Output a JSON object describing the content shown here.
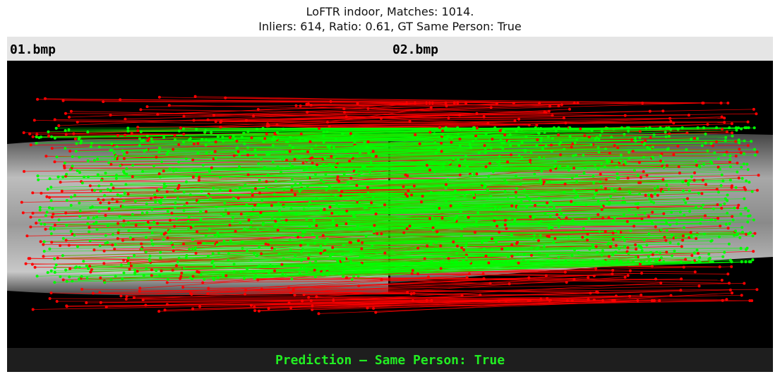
{
  "title": {
    "line1": "LoFTR indoor, Matches: 1014.",
    "line2": "Inliers: 614, Ratio: 0.61, GT Same Person: True"
  },
  "images": {
    "left_label": "01.bmp",
    "right_label": "02.bmp"
  },
  "footer": {
    "prediction": "Prediction — Same Person: True"
  },
  "colors": {
    "inlier": "#00ff00",
    "outlier": "#ff0000",
    "header_bg": "#e5e5e5",
    "footer_bg": "#1e1e1e",
    "prediction_text": "#22ee22"
  },
  "stats": {
    "matches": 1014,
    "inliers": 614,
    "ratio": 0.61,
    "gt_same_person": true
  }
}
